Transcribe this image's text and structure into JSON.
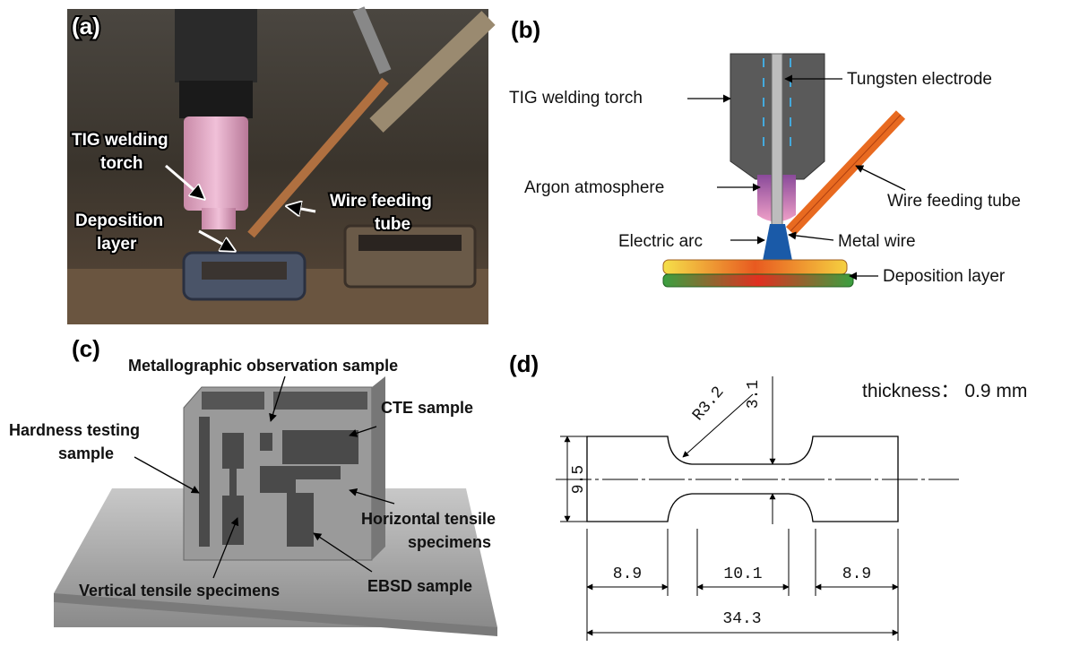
{
  "panels": [
    {
      "label": "(a)",
      "callouts": [
        {
          "lines": [
            "TIG welding",
            "torch"
          ]
        },
        {
          "lines": [
            "Deposition",
            "layer"
          ]
        },
        {
          "lines": [
            "Wire feeding",
            "tube"
          ]
        }
      ]
    },
    {
      "label": "(b)",
      "callouts": [
        {
          "lines": [
            "Tungsten electrode"
          ]
        },
        {
          "lines": [
            "TIG welding torch"
          ]
        },
        {
          "lines": [
            "Argon atmosphere"
          ]
        },
        {
          "lines": [
            "Wire feeding tube"
          ]
        },
        {
          "lines": [
            "Electric arc"
          ]
        },
        {
          "lines": [
            "Metal wire"
          ]
        },
        {
          "lines": [
            "Deposition layer"
          ]
        }
      ]
    },
    {
      "label": "(c)",
      "callouts": [
        {
          "lines": [
            "Metallographic observation sample"
          ]
        },
        {
          "lines": [
            "CTE sample"
          ]
        },
        {
          "lines": [
            "Hardness testing",
            "sample"
          ]
        },
        {
          "lines": [
            "Horizontal tensile",
            "specimens"
          ]
        },
        {
          "lines": [
            "Vertical tensile specimens"
          ]
        },
        {
          "lines": [
            "EBSD sample"
          ]
        }
      ]
    },
    {
      "label": "(d)",
      "note": "thickness： 0.9 mm",
      "dimensions": [
        "R3.2",
        "3.1",
        "9.5",
        "8.9",
        "10.1",
        "8.9",
        "34.3"
      ]
    }
  ]
}
